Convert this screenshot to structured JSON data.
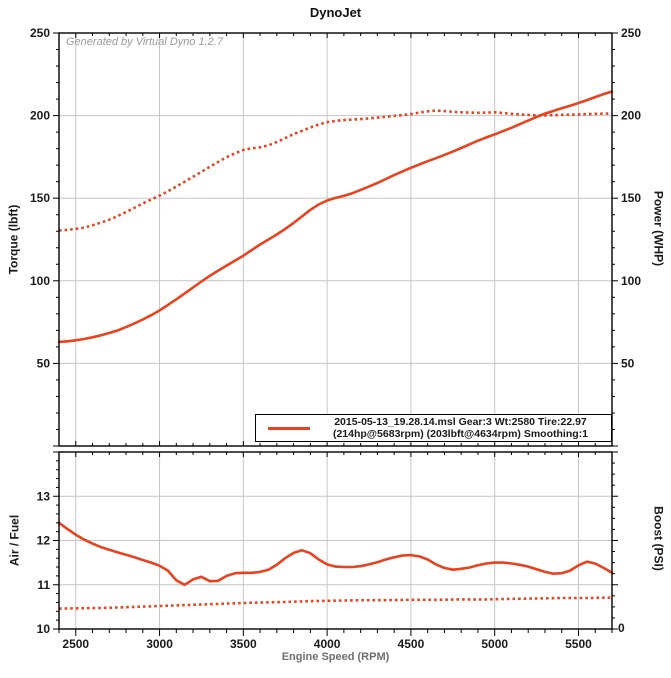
{
  "colors": {
    "accent": "#e8431f",
    "grid": "#c6c6c6",
    "frame": "#000000",
    "tick_label": "#1a1a1a",
    "watermark": "#9a9a9a",
    "background": "#ffffff"
  },
  "chart_data": [
    {
      "type": "line",
      "title": "DynoJet",
      "watermark": "Generated by Virtual Dyno 1.2.7",
      "x": {
        "label": "",
        "min": 2400,
        "max": 5700,
        "major_tick_values": [
          2500,
          3000,
          3500,
          4000,
          4500,
          5000,
          5500
        ],
        "major_tick_labels": [
          "2500",
          "3000",
          "3500",
          "4000",
          "4500",
          "5000",
          "5500"
        ],
        "minor_step": 100,
        "grid": true
      },
      "y_left": {
        "title": "Torque (lbft)",
        "min": 0,
        "max": 250,
        "major_tick_values": [
          50,
          100,
          150,
          200,
          250
        ],
        "major_tick_labels": [
          "50",
          "100",
          "150",
          "200",
          "250"
        ],
        "minor_step": 10,
        "grid": true
      },
      "y_right": {
        "title": "Power (WHP)",
        "min": 0,
        "max": 250,
        "major_tick_values": [
          50,
          100,
          150,
          200,
          250
        ],
        "major_tick_labels": [
          "50",
          "100",
          "150",
          "200",
          "250"
        ],
        "minor_step": 10
      },
      "legend": {
        "line1": "2015-05-13_19.28.14.msl Gear:3 Wt:2580 Tire:22.97",
        "line2": "(214hp@5683rpm) (203lbft@4634rpm) Smoothing:1"
      },
      "annotations": {
        "power_peak": "214hp@5683rpm",
        "torque_peak": "203lbft@4634rpm",
        "smoothing": "1"
      },
      "series": [
        {
          "name": "power_whp",
          "style": "solid",
          "points": [
            [
              2400,
              63
            ],
            [
              2450,
              63.4
            ],
            [
              2500,
              64
            ],
            [
              2550,
              64.8
            ],
            [
              2600,
              65.8
            ],
            [
              2650,
              67
            ],
            [
              2700,
              68.4
            ],
            [
              2750,
              70
            ],
            [
              2800,
              72
            ],
            [
              2850,
              74.2
            ],
            [
              2900,
              76.6
            ],
            [
              2950,
              79.2
            ],
            [
              3000,
              82
            ],
            [
              3050,
              85.4
            ],
            [
              3100,
              88.8
            ],
            [
              3150,
              92.4
            ],
            [
              3200,
              96
            ],
            [
              3250,
              99.6
            ],
            [
              3300,
              103
            ],
            [
              3350,
              106.2
            ],
            [
              3400,
              109.2
            ],
            [
              3450,
              112.2
            ],
            [
              3500,
              115.2
            ],
            [
              3550,
              118.6
            ],
            [
              3600,
              122
            ],
            [
              3650,
              125
            ],
            [
              3700,
              128
            ],
            [
              3750,
              131.4
            ],
            [
              3800,
              135
            ],
            [
              3850,
              139
            ],
            [
              3900,
              143
            ],
            [
              3950,
              146.2
            ],
            [
              4000,
              148.6
            ],
            [
              4050,
              150.2
            ],
            [
              4100,
              151.4
            ],
            [
              4150,
              153
            ],
            [
              4200,
              155
            ],
            [
              4250,
              157
            ],
            [
              4300,
              159.2
            ],
            [
              4350,
              161.6
            ],
            [
              4400,
              164
            ],
            [
              4450,
              166.2
            ],
            [
              4500,
              168.4
            ],
            [
              4550,
              170.4
            ],
            [
              4600,
              172.4
            ],
            [
              4650,
              174.2
            ],
            [
              4700,
              176.2
            ],
            [
              4750,
              178.2
            ],
            [
              4800,
              180.4
            ],
            [
              4850,
              182.6
            ],
            [
              4900,
              184.8
            ],
            [
              4950,
              186.8
            ],
            [
              5000,
              188.6
            ],
            [
              5050,
              190.6
            ],
            [
              5100,
              192.6
            ],
            [
              5150,
              194.8
            ],
            [
              5200,
              197
            ],
            [
              5250,
              199.2
            ],
            [
              5300,
              201.2
            ],
            [
              5350,
              202.8
            ],
            [
              5400,
              204.4
            ],
            [
              5450,
              206
            ],
            [
              5500,
              207.6
            ],
            [
              5550,
              209.4
            ],
            [
              5600,
              211.2
            ],
            [
              5650,
              213
            ],
            [
              5700,
              214.6
            ]
          ]
        },
        {
          "name": "torque_lbft",
          "style": "dotted",
          "points": [
            [
              2400,
              130.5
            ],
            [
              2450,
              130.8
            ],
            [
              2500,
              131.4
            ],
            [
              2550,
              132.2
            ],
            [
              2600,
              133.6
            ],
            [
              2650,
              135.2
            ],
            [
              2700,
              137
            ],
            [
              2750,
              139.2
            ],
            [
              2800,
              141.6
            ],
            [
              2850,
              144.2
            ],
            [
              2900,
              146.8
            ],
            [
              2950,
              149.2
            ],
            [
              3000,
              151.6
            ],
            [
              3050,
              154.2
            ],
            [
              3100,
              157
            ],
            [
              3150,
              160
            ],
            [
              3200,
              163
            ],
            [
              3250,
              166
            ],
            [
              3300,
              169
            ],
            [
              3350,
              172
            ],
            [
              3400,
              174.8
            ],
            [
              3450,
              177.2
            ],
            [
              3500,
              179.2
            ],
            [
              3550,
              180.2
            ],
            [
              3600,
              180.8
            ],
            [
              3650,
              182
            ],
            [
              3700,
              184
            ],
            [
              3750,
              186.4
            ],
            [
              3800,
              188.8
            ],
            [
              3850,
              190.8
            ],
            [
              3900,
              192.8
            ],
            [
              3950,
              194.6
            ],
            [
              4000,
              196
            ],
            [
              4050,
              196.8
            ],
            [
              4100,
              197.3
            ],
            [
              4150,
              197.6
            ],
            [
              4200,
              197.9
            ],
            [
              4250,
              198.3
            ],
            [
              4300,
              198.8
            ],
            [
              4350,
              199.3
            ],
            [
              4400,
              199.8
            ],
            [
              4450,
              200.3
            ],
            [
              4500,
              200.9
            ],
            [
              4550,
              201.8
            ],
            [
              4600,
              202.6
            ],
            [
              4650,
              203
            ],
            [
              4700,
              202.7
            ],
            [
              4750,
              202.3
            ],
            [
              4800,
              202
            ],
            [
              4850,
              201.8
            ],
            [
              4900,
              201.7
            ],
            [
              4950,
              201.8
            ],
            [
              5000,
              202
            ],
            [
              5050,
              201.6
            ],
            [
              5100,
              201.1
            ],
            [
              5150,
              200.7
            ],
            [
              5200,
              200.4
            ],
            [
              5250,
              200.1
            ],
            [
              5300,
              200.1
            ],
            [
              5350,
              200.3
            ],
            [
              5400,
              200.5
            ],
            [
              5450,
              200.6
            ],
            [
              5500,
              200.7
            ],
            [
              5550,
              200.9
            ],
            [
              5600,
              201.1
            ],
            [
              5650,
              201.2
            ],
            [
              5700,
              201.3
            ]
          ]
        }
      ]
    },
    {
      "type": "line",
      "x": {
        "title": "Engine Speed (RPM)",
        "min": 2400,
        "max": 5700,
        "major_tick_values": [
          2500,
          3000,
          3500,
          4000,
          4500,
          5000,
          5500
        ],
        "major_tick_labels": [
          "2500",
          "3000",
          "3500",
          "4000",
          "4500",
          "5000",
          "5500"
        ],
        "minor_step": 100,
        "grid": true
      },
      "y_left": {
        "title": "Air / Fuel",
        "min": 10,
        "max": 14,
        "major_tick_values": [
          10,
          11,
          12,
          13
        ],
        "major_tick_labels": [
          "10",
          "11",
          "12",
          "13"
        ],
        "minor_step": 0.2,
        "grid": true
      },
      "y_right": {
        "title": "Boost (PSI)",
        "tick_labels": [
          "0"
        ],
        "minor_step": 0.25
      },
      "series": [
        {
          "name": "air_fuel",
          "style": "solid",
          "points": [
            [
              2400,
              12.4
            ],
            [
              2450,
              12.26
            ],
            [
              2500,
              12.13
            ],
            [
              2550,
              12.02
            ],
            [
              2600,
              11.93
            ],
            [
              2650,
              11.85
            ],
            [
              2700,
              11.79
            ],
            [
              2750,
              11.73
            ],
            [
              2800,
              11.68
            ],
            [
              2850,
              11.62
            ],
            [
              2900,
              11.56
            ],
            [
              2950,
              11.5
            ],
            [
              3000,
              11.43
            ],
            [
              3050,
              11.32
            ],
            [
              3100,
              11.1
            ],
            [
              3150,
              11.0
            ],
            [
              3200,
              11.12
            ],
            [
              3250,
              11.18
            ],
            [
              3300,
              11.08
            ],
            [
              3350,
              11.09
            ],
            [
              3400,
              11.2
            ],
            [
              3450,
              11.26
            ],
            [
              3500,
              11.27
            ],
            [
              3550,
              11.27
            ],
            [
              3600,
              11.29
            ],
            [
              3650,
              11.34
            ],
            [
              3700,
              11.45
            ],
            [
              3750,
              11.6
            ],
            [
              3800,
              11.72
            ],
            [
              3850,
              11.78
            ],
            [
              3900,
              11.71
            ],
            [
              3950,
              11.57
            ],
            [
              4000,
              11.46
            ],
            [
              4050,
              11.41
            ],
            [
              4100,
              11.4
            ],
            [
              4150,
              11.4
            ],
            [
              4200,
              11.42
            ],
            [
              4250,
              11.46
            ],
            [
              4300,
              11.51
            ],
            [
              4350,
              11.57
            ],
            [
              4400,
              11.62
            ],
            [
              4450,
              11.66
            ],
            [
              4500,
              11.67
            ],
            [
              4550,
              11.64
            ],
            [
              4600,
              11.57
            ],
            [
              4650,
              11.46
            ],
            [
              4700,
              11.38
            ],
            [
              4750,
              11.34
            ],
            [
              4800,
              11.36
            ],
            [
              4850,
              11.39
            ],
            [
              4900,
              11.44
            ],
            [
              4950,
              11.48
            ],
            [
              5000,
              11.5
            ],
            [
              5050,
              11.5
            ],
            [
              5100,
              11.48
            ],
            [
              5150,
              11.45
            ],
            [
              5200,
              11.41
            ],
            [
              5250,
              11.35
            ],
            [
              5300,
              11.29
            ],
            [
              5350,
              11.25
            ],
            [
              5400,
              11.26
            ],
            [
              5450,
              11.32
            ],
            [
              5500,
              11.44
            ],
            [
              5550,
              11.52
            ],
            [
              5600,
              11.48
            ],
            [
              5650,
              11.38
            ],
            [
              5700,
              11.27
            ]
          ]
        },
        {
          "name": "boost_psi_display",
          "style": "dotted",
          "note": "boost trace plotted against right Boost (PSI) axis; values recorded in left-axis display units",
          "points": [
            [
              2400,
              10.46
            ],
            [
              2550,
              10.47
            ],
            [
              2700,
              10.48
            ],
            [
              2850,
              10.5
            ],
            [
              3000,
              10.52
            ],
            [
              3150,
              10.54
            ],
            [
              3300,
              10.56
            ],
            [
              3450,
              10.58
            ],
            [
              3600,
              10.6
            ],
            [
              3750,
              10.61
            ],
            [
              3900,
              10.63
            ],
            [
              4050,
              10.64
            ],
            [
              4200,
              10.65
            ],
            [
              4350,
              10.65
            ],
            [
              4500,
              10.66
            ],
            [
              4650,
              10.66
            ],
            [
              4800,
              10.67
            ],
            [
              4950,
              10.67
            ],
            [
              5100,
              10.68
            ],
            [
              5250,
              10.69
            ],
            [
              5400,
              10.7
            ],
            [
              5550,
              10.7
            ],
            [
              5700,
              10.71
            ]
          ]
        }
      ]
    }
  ]
}
